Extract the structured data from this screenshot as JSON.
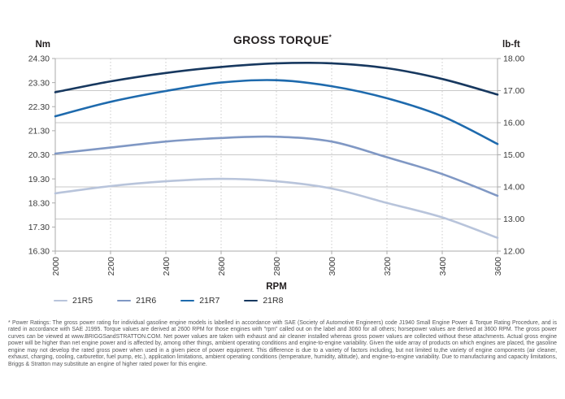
{
  "header": {
    "title": "GROSS TORQUE",
    "title_mark": "*",
    "left_unit": "Nm",
    "right_unit": "lb-ft",
    "x_label": "RPM"
  },
  "chart_data": {
    "type": "line",
    "title": "GROSS TORQUE*",
    "xlabel": "RPM",
    "ylabel_left": "Nm",
    "ylabel_right": "lb-ft",
    "x": [
      2000,
      2200,
      2400,
      2600,
      2800,
      3000,
      3200,
      3400,
      3600
    ],
    "left_axis": {
      "unit": "Nm",
      "min": 16.3,
      "max": 24.3,
      "tick_step": 1.0,
      "ticks": [
        "24.30",
        "23.30",
        "22.30",
        "21.30",
        "20.30",
        "19.30",
        "18.30",
        "17.30",
        "16.30"
      ]
    },
    "right_axis": {
      "unit": "lb-ft",
      "min": 12.0,
      "max": 18.0,
      "tick_step": 1.0,
      "ticks": [
        "18.00",
        "17.00",
        "16.00",
        "15.00",
        "14.00",
        "13.00",
        "12.00"
      ]
    },
    "series": [
      {
        "name": "21R5",
        "color": "#b8c4db",
        "values_nm": [
          18.7,
          19.0,
          19.2,
          19.3,
          19.2,
          18.9,
          18.3,
          17.7,
          16.85
        ]
      },
      {
        "name": "21R6",
        "color": "#8098c4",
        "values_nm": [
          20.35,
          20.6,
          20.85,
          21.0,
          21.05,
          20.85,
          20.2,
          19.5,
          18.6
        ]
      },
      {
        "name": "21R7",
        "color": "#1e6aad",
        "values_nm": [
          21.9,
          22.5,
          22.95,
          23.3,
          23.4,
          23.15,
          22.65,
          21.9,
          20.75
        ]
      },
      {
        "name": "21R8",
        "color": "#17385f",
        "values_nm": [
          22.9,
          23.35,
          23.7,
          23.95,
          24.1,
          24.1,
          23.9,
          23.45,
          22.8
        ]
      }
    ],
    "grid": {
      "horizontal_lbft": [
        17,
        16,
        15,
        14,
        13
      ],
      "vertical_rpm": [
        2200,
        2400,
        2600,
        2800,
        3000,
        3200,
        3400
      ],
      "style_horizontal": "solid",
      "style_vertical": "dotted"
    },
    "legend_position": "bottom-left",
    "colors": {
      "grid": "#c9c9c9",
      "axis": "#ababab",
      "tick_text": "#3a3a3a"
    }
  },
  "footnote": {
    "text": "* Power Ratings: The gross power rating for individual gasoline engine models is labelled in accordance with SAE (Society of Automotive Engineers) code J1940 Small Engine Power & Torque Rating Procedure, and is rated in accordance with SAE J1995. Torque values are derived at 2600 RPM for those engines with \"rpm\" called out on the label and 3060 for all others; horsepower values are derived at 3600 RPM. The gross power curves can be viewed at www.BRIGGSandSTRATTON.COM. Net power values are taken with exhaust and air cleaner installed whereas gross power values are collected without these attachments. Actual gross engine power will be higher than net engine power and is affected by, among other things, ambient operating conditions and engine-to-engine variability. Given the wide array of products on which engines are placed, the gasoline engine may not develop the rated gross power when used in a given piece of power equipment. This difference is due to a variety of factors including, but not limited to,the variety of engine components (air cleaner, exhaust, charging, cooling, carburettor, fuel pump, etc.), application limitations, ambient operating conditions (temperature, humidity, altitude), and engine-to-engine variability. Due to manufacturing and capacity limitations, Briggs & Stratton may substitute an engine of higher rated power for this engine."
  }
}
